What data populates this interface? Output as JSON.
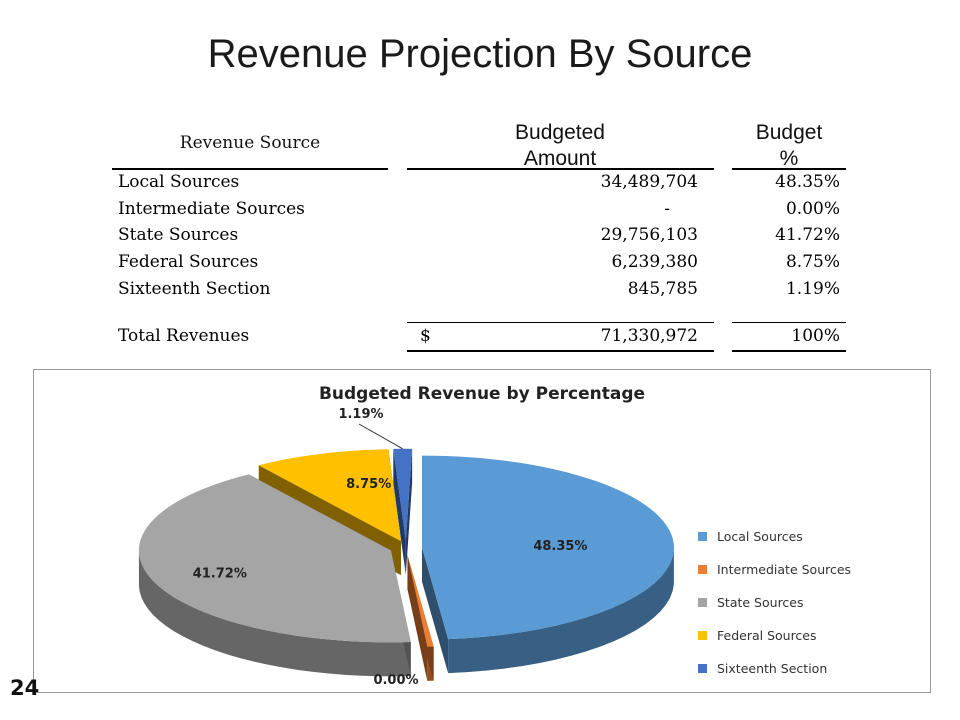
{
  "slide": {
    "title": "Revenue Projection By Source",
    "page_number": "24"
  },
  "table": {
    "headers": {
      "source": "Revenue Source",
      "amount_line1": "Budgeted",
      "amount_line2": "Amount",
      "pct_line1": "Budget",
      "pct_line2": "%"
    },
    "rows": [
      {
        "source": "Local Sources",
        "amount": "34,489,704",
        "pct": "48.35%"
      },
      {
        "source": "Intermediate Sources",
        "amount": "-",
        "pct": "0.00%"
      },
      {
        "source": "State Sources",
        "amount": "29,756,103",
        "pct": "41.72%"
      },
      {
        "source": "Federal Sources",
        "amount": "6,239,380",
        "pct": "8.75%"
      },
      {
        "source": "Sixteenth Section",
        "amount": "845,785",
        "pct": "1.19%"
      }
    ],
    "total": {
      "label": "Total Revenues",
      "currency": "$",
      "amount": "71,330,972",
      "pct": "100%"
    }
  },
  "chart_data": {
    "type": "pie",
    "title": "Budgeted Revenue by Percentage",
    "style": "3d-exploded",
    "legend_position": "right",
    "categories": [
      "Local Sources",
      "Intermediate Sources",
      "State Sources",
      "Federal Sources",
      "Sixteenth Section"
    ],
    "values": [
      48.35,
      0.0,
      41.72,
      8.75,
      1.19
    ],
    "labels": [
      "48.35%",
      "0.00%",
      "41.72%",
      "8.75%",
      "1.19%"
    ],
    "colors": [
      "#5b9bd5",
      "#ed7d31",
      "#a5a5a5",
      "#ffc000",
      "#4472c4"
    ]
  }
}
